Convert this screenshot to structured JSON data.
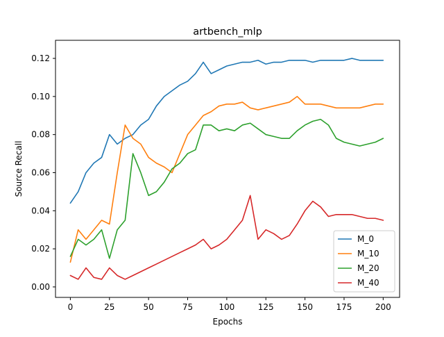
{
  "chart_data": {
    "type": "line",
    "title": "artbench_mlp",
    "xlabel": "Epochs",
    "ylabel": "Source Recall",
    "xlim": [
      -9.5,
      210.5
    ],
    "ylim": [
      -0.0055,
      0.1295
    ],
    "xticks": [
      0,
      25,
      50,
      75,
      100,
      125,
      150,
      175,
      200
    ],
    "yticks": [
      0.0,
      0.02,
      0.04,
      0.06,
      0.08,
      0.1,
      0.12
    ],
    "ytick_labels": [
      "0.00",
      "0.02",
      "0.04",
      "0.06",
      "0.08",
      "0.10",
      "0.12"
    ],
    "grid": false,
    "legend_position": "bottom-right",
    "x": [
      0,
      5,
      10,
      15,
      20,
      25,
      30,
      35,
      40,
      45,
      50,
      55,
      60,
      65,
      70,
      75,
      80,
      85,
      90,
      95,
      100,
      105,
      110,
      115,
      120,
      125,
      130,
      135,
      140,
      145,
      150,
      155,
      160,
      165,
      170,
      175,
      180,
      185,
      190,
      195,
      200
    ],
    "series": [
      {
        "name": "M_0",
        "color": "#1f77b4",
        "values": [
          0.044,
          0.05,
          0.06,
          0.065,
          0.068,
          0.08,
          0.075,
          0.078,
          0.08,
          0.085,
          0.088,
          0.095,
          0.1,
          0.103,
          0.106,
          0.108,
          0.112,
          0.118,
          0.112,
          0.114,
          0.116,
          0.117,
          0.118,
          0.118,
          0.119,
          0.117,
          0.118,
          0.118,
          0.119,
          0.119,
          0.119,
          0.118,
          0.119,
          0.119,
          0.119,
          0.119,
          0.12,
          0.119,
          0.119,
          0.119,
          0.119
        ]
      },
      {
        "name": "M_10",
        "color": "#ff7f0e",
        "values": [
          0.013,
          0.03,
          0.025,
          0.03,
          0.035,
          0.033,
          0.06,
          0.085,
          0.078,
          0.075,
          0.068,
          0.065,
          0.063,
          0.06,
          0.07,
          0.08,
          0.085,
          0.09,
          0.092,
          0.095,
          0.096,
          0.096,
          0.097,
          0.094,
          0.093,
          0.094,
          0.095,
          0.096,
          0.097,
          0.1,
          0.096,
          0.096,
          0.096,
          0.095,
          0.094,
          0.094,
          0.094,
          0.094,
          0.095,
          0.096,
          0.096
        ]
      },
      {
        "name": "M_20",
        "color": "#2ca02c",
        "values": [
          0.016,
          0.025,
          0.022,
          0.025,
          0.03,
          0.015,
          0.03,
          0.035,
          0.07,
          0.06,
          0.048,
          0.05,
          0.055,
          0.062,
          0.065,
          0.07,
          0.072,
          0.085,
          0.085,
          0.082,
          0.083,
          0.082,
          0.085,
          0.086,
          0.083,
          0.08,
          0.079,
          0.078,
          0.078,
          0.082,
          0.085,
          0.087,
          0.088,
          0.085,
          0.078,
          0.076,
          0.075,
          0.074,
          0.075,
          0.076,
          0.078
        ]
      },
      {
        "name": "M_40",
        "color": "#d62728",
        "values": [
          0.006,
          0.004,
          0.01,
          0.005,
          0.004,
          0.01,
          0.006,
          0.004,
          0.006,
          0.008,
          0.01,
          0.012,
          0.014,
          0.016,
          0.018,
          0.02,
          0.022,
          0.025,
          0.02,
          0.022,
          0.025,
          0.03,
          0.035,
          0.048,
          0.025,
          0.03,
          0.028,
          0.025,
          0.027,
          0.033,
          0.04,
          0.045,
          0.042,
          0.037,
          0.038,
          0.038,
          0.038,
          0.037,
          0.036,
          0.036,
          0.035
        ]
      }
    ]
  }
}
